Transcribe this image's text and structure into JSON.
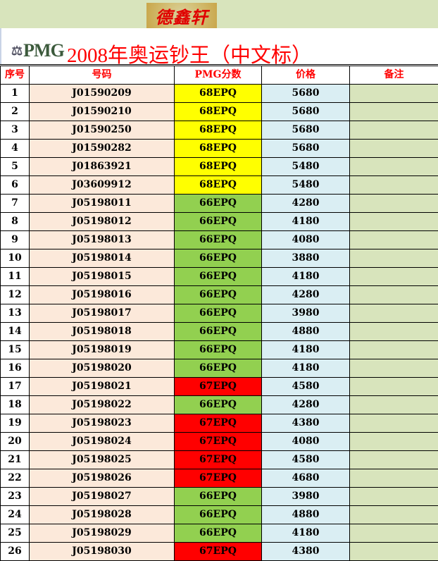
{
  "brand_logo_text": "德鑫轩",
  "pmg_logo_text": "PMG",
  "title": "2008年奥运钞王（中文标）",
  "headers": [
    "序号",
    "号码",
    "PMG分数",
    "价格",
    "备注"
  ],
  "grade_colors": {
    "68EPQ": "#ffff00",
    "66EPQ": "#92d050",
    "67EPQ": "#ff0000"
  },
  "rows": [
    {
      "no": "1",
      "code": "J01590209",
      "grade": "68EPQ",
      "price": "5680",
      "note": ""
    },
    {
      "no": "2",
      "code": "J01590210",
      "grade": "68EPQ",
      "price": "5680",
      "note": ""
    },
    {
      "no": "3",
      "code": "J01590250",
      "grade": "68EPQ",
      "price": "5680",
      "note": ""
    },
    {
      "no": "4",
      "code": "J01590282",
      "grade": "68EPQ",
      "price": "5680",
      "note": ""
    },
    {
      "no": "5",
      "code": "J01863921",
      "grade": "68EPQ",
      "price": "5480",
      "note": ""
    },
    {
      "no": "6",
      "code": "J03609912",
      "grade": "68EPQ",
      "price": "5480",
      "note": ""
    },
    {
      "no": "7",
      "code": "J05198011",
      "grade": "66EPQ",
      "price": "4280",
      "note": ""
    },
    {
      "no": "8",
      "code": "J05198012",
      "grade": "66EPQ",
      "price": "4180",
      "note": ""
    },
    {
      "no": "9",
      "code": "J05198013",
      "grade": "66EPQ",
      "price": "4080",
      "note": ""
    },
    {
      "no": "10",
      "code": "J05198014",
      "grade": "66EPQ",
      "price": "3880",
      "note": ""
    },
    {
      "no": "11",
      "code": "J05198015",
      "grade": "66EPQ",
      "price": "4180",
      "note": ""
    },
    {
      "no": "12",
      "code": "J05198016",
      "grade": "66EPQ",
      "price": "4280",
      "note": ""
    },
    {
      "no": "13",
      "code": "J05198017",
      "grade": "66EPQ",
      "price": "3980",
      "note": ""
    },
    {
      "no": "14",
      "code": "J05198018",
      "grade": "66EPQ",
      "price": "4880",
      "note": ""
    },
    {
      "no": "15",
      "code": "J05198019",
      "grade": "66EPQ",
      "price": "4180",
      "note": ""
    },
    {
      "no": "16",
      "code": "J05198020",
      "grade": "66EPQ",
      "price": "4180",
      "note": ""
    },
    {
      "no": "17",
      "code": "J05198021",
      "grade": "67EPQ",
      "price": "4580",
      "note": ""
    },
    {
      "no": "18",
      "code": "J05198022",
      "grade": "66EPQ",
      "price": "4280",
      "note": ""
    },
    {
      "no": "19",
      "code": "J05198023",
      "grade": "67EPQ",
      "price": "4380",
      "note": ""
    },
    {
      "no": "20",
      "code": "J05198024",
      "grade": "67EPQ",
      "price": "4080",
      "note": ""
    },
    {
      "no": "21",
      "code": "J05198025",
      "grade": "67EPQ",
      "price": "4580",
      "note": ""
    },
    {
      "no": "22",
      "code": "J05198026",
      "grade": "67EPQ",
      "price": "4680",
      "note": ""
    },
    {
      "no": "23",
      "code": "J05198027",
      "grade": "66EPQ",
      "price": "3980",
      "note": ""
    },
    {
      "no": "24",
      "code": "J05198028",
      "grade": "66EPQ",
      "price": "4880",
      "note": ""
    },
    {
      "no": "25",
      "code": "J05198029",
      "grade": "66EPQ",
      "price": "4180",
      "note": ""
    },
    {
      "no": "26",
      "code": "J05198030",
      "grade": "67EPQ",
      "price": "4380",
      "note": ""
    }
  ]
}
